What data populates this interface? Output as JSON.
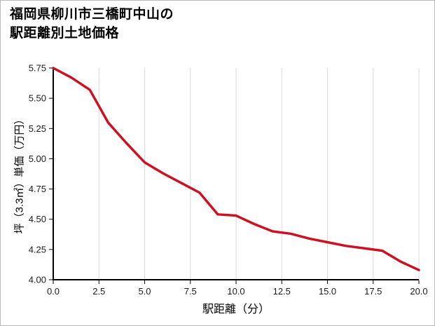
{
  "title": {
    "line1": "福岡県柳川市三橋町中山の",
    "line2": "駅距離別土地価格"
  },
  "chart_data": {
    "type": "line",
    "title": "福岡県柳川市三橋町中山の駅距離別土地価格",
    "xlabel": "駅距離（分）",
    "ylabel": "坪（3.3㎡）単価（万円）",
    "x": [
      0,
      1,
      2,
      3,
      4,
      5,
      6,
      7,
      8,
      9,
      10,
      11,
      12,
      13,
      14,
      15,
      16,
      17,
      18,
      19,
      20
    ],
    "y": [
      5.75,
      5.67,
      5.57,
      5.3,
      5.13,
      4.97,
      4.88,
      4.8,
      4.72,
      4.54,
      4.53,
      4.46,
      4.4,
      4.38,
      4.34,
      4.31,
      4.28,
      4.26,
      4.24,
      4.15,
      4.08
    ],
    "xlim": [
      0,
      20
    ],
    "ylim": [
      4.0,
      5.75
    ],
    "xticks": [
      0,
      2.5,
      5,
      7.5,
      10,
      12.5,
      15,
      17.5,
      20
    ],
    "yticks": [
      4.0,
      4.25,
      4.5,
      4.75,
      5.0,
      5.25,
      5.5,
      5.75
    ],
    "xtick_labels": [
      "0.0",
      "2.5",
      "5.0",
      "7.5",
      "10.0",
      "12.5",
      "15.0",
      "17.5",
      "20.0"
    ],
    "ytick_labels": [
      "4.00",
      "4.25",
      "4.50",
      "4.75",
      "5.00",
      "5.25",
      "5.50",
      "5.75"
    ],
    "line_color": "#cc1122",
    "axis_color": "#000000",
    "grid_color": "#d9d9d9",
    "tick_label_color": "#1a1a1a",
    "grid": "vertical",
    "legend": "none"
  }
}
